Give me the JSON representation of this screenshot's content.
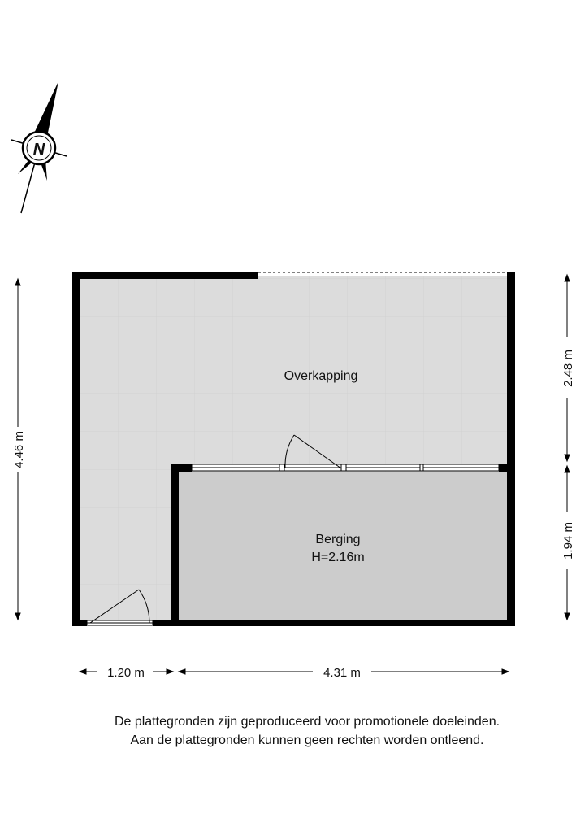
{
  "rooms": [
    {
      "name": "Overkapping"
    },
    {
      "name": "Berging",
      "height": "H=2.16m"
    }
  ],
  "dimensions": {
    "left_total": "4.46 m",
    "right_top": "2.48 m",
    "right_bottom": "1.94 m",
    "bottom_left": "1.20 m",
    "bottom_right": "4.31 m"
  },
  "compass": {
    "label": "N"
  },
  "disclaimer": {
    "line1": "De plattegronden zijn geproduceerd voor promotionele doeleinden.",
    "line2": "Aan de plattegronden kunnen geen rechten worden ontleend."
  },
  "colors": {
    "wall": "#000000",
    "overkapping_floor": "#dcdcdc",
    "berging_floor": "#cccccc"
  }
}
